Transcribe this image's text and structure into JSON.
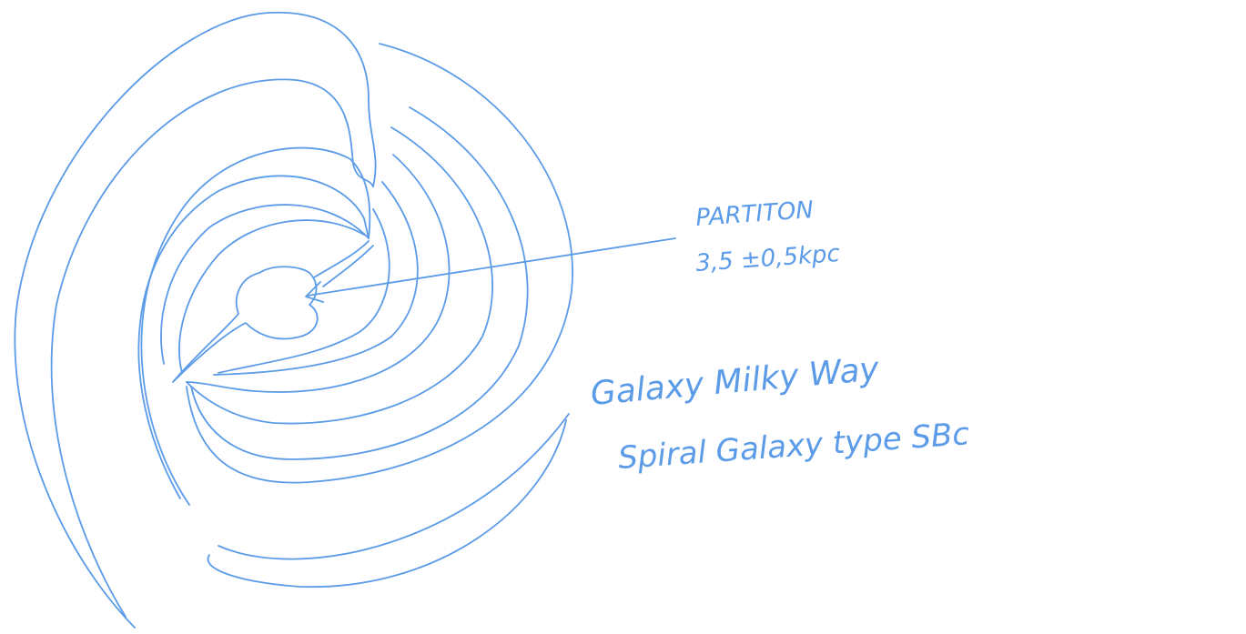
{
  "labels": {
    "marker_name": "PARTITON",
    "marker_distance": "3,5 ±0,5kpc"
  },
  "caption": {
    "line1": "Galaxy Milky Way",
    "line2": "Spiral Galaxy type SBc"
  }
}
